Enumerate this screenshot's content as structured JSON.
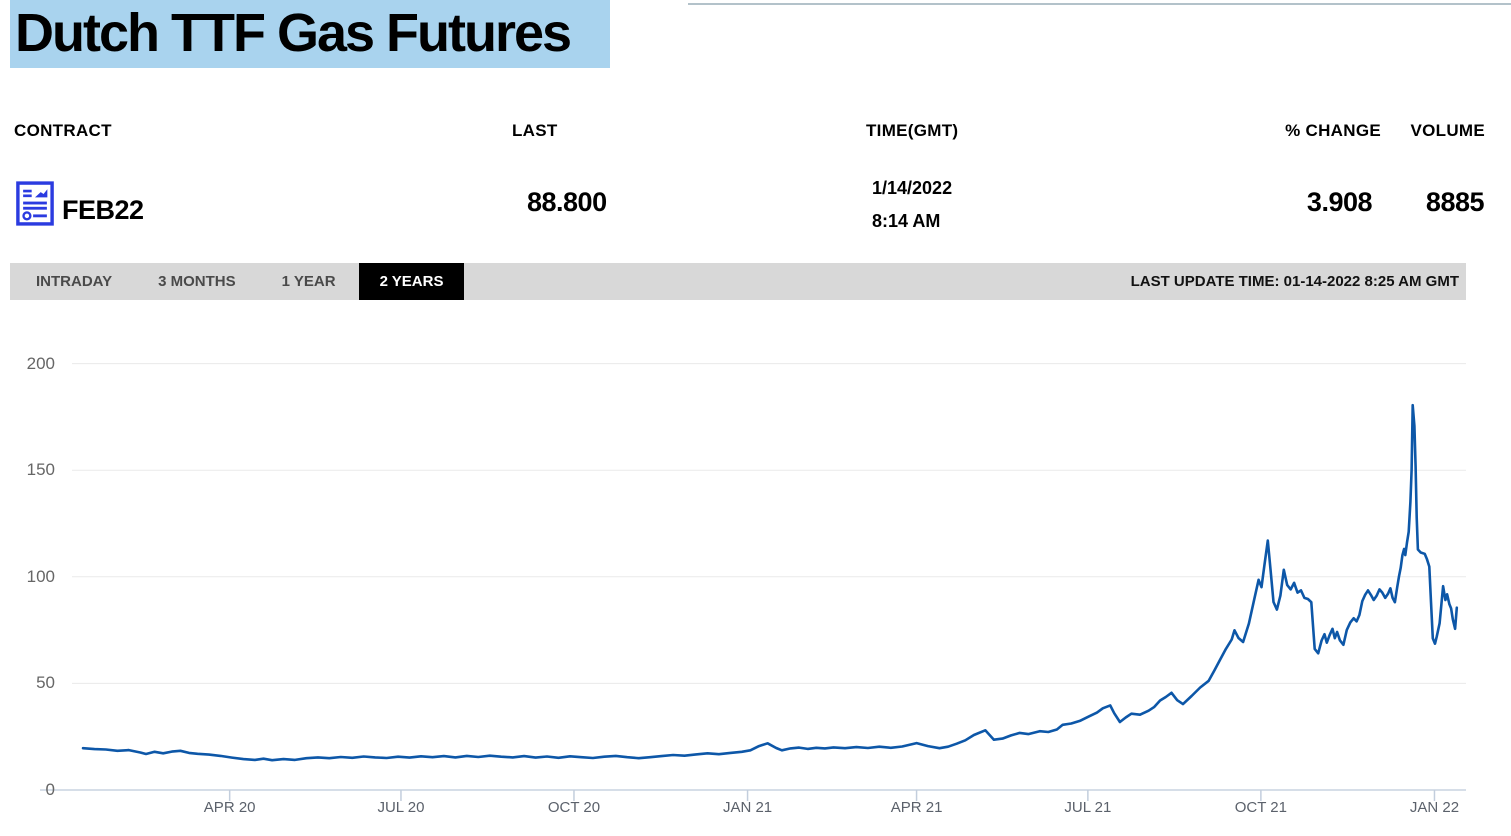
{
  "header": {
    "title": "Dutch TTF Gas Futures"
  },
  "quote_table": {
    "headers": [
      "CONTRACT",
      "LAST",
      "TIME(GMT)",
      "% CHANGE",
      "VOLUME"
    ],
    "row": {
      "contract": "FEB22",
      "last": "88.800",
      "date": "1/14/2022",
      "time": "8:14 AM",
      "pct_change": "3.908",
      "volume": "8885"
    },
    "contract_icon": "contract-document-icon"
  },
  "tabs": {
    "items": [
      {
        "label": "INTRADAY",
        "active": false
      },
      {
        "label": "3 MONTHS",
        "active": false
      },
      {
        "label": "1 YEAR",
        "active": false
      },
      {
        "label": "2 YEARS",
        "active": true
      }
    ],
    "last_update": "LAST UPDATE TIME: 01-14-2022 8:25 AM GMT"
  },
  "colors": {
    "line": "#0d57a8",
    "title_highlight": "#a9d3ee",
    "tab_bar": "#d8d8d8",
    "active_tab": "#000000",
    "gridline": "#eaeaea",
    "baseline": "#c9d3e0",
    "tick": "#c3cedd"
  },
  "chart_data": {
    "type": "line",
    "title": "Dutch TTF Gas Futures price, 2 years",
    "xlabel": "",
    "ylabel": "",
    "ylim": [
      0,
      200
    ],
    "yticks": [
      0,
      50,
      100,
      150,
      200
    ],
    "grid": "horizontal",
    "legend": "none",
    "x_unit": "months since 2020-01-14",
    "x_range": [
      0,
      24
    ],
    "xticks": [
      {
        "label": "APR 20",
        "m": 2.56
      },
      {
        "label": "JUL 20",
        "m": 5.55
      },
      {
        "label": "OCT 20",
        "m": 8.57
      },
      {
        "label": "JAN 21",
        "m": 11.6
      },
      {
        "label": "APR 21",
        "m": 14.55
      },
      {
        "label": "JUL 21",
        "m": 17.54
      },
      {
        "label": "OCT 21",
        "m": 20.56
      },
      {
        "label": "JAN 22",
        "m": 23.59
      }
    ],
    "series": [
      {
        "name": "FEB22",
        "color": "#0d57a8",
        "points": [
          [
            0,
            19.6
          ],
          [
            0.2,
            19.2
          ],
          [
            0.4,
            19.0
          ],
          [
            0.6,
            18.4
          ],
          [
            0.8,
            18.7
          ],
          [
            1.0,
            17.6
          ],
          [
            1.1,
            16.9
          ],
          [
            1.25,
            17.9
          ],
          [
            1.4,
            17.2
          ],
          [
            1.55,
            18.0
          ],
          [
            1.7,
            18.4
          ],
          [
            1.85,
            17.4
          ],
          [
            2.0,
            17.0
          ],
          [
            2.2,
            16.6
          ],
          [
            2.4,
            16.0
          ],
          [
            2.6,
            15.2
          ],
          [
            2.8,
            14.5
          ],
          [
            3.0,
            14.1
          ],
          [
            3.15,
            14.7
          ],
          [
            3.3,
            14.0
          ],
          [
            3.5,
            14.5
          ],
          [
            3.7,
            14.1
          ],
          [
            3.9,
            14.9
          ],
          [
            4.1,
            15.3
          ],
          [
            4.3,
            14.9
          ],
          [
            4.5,
            15.5
          ],
          [
            4.7,
            15.1
          ],
          [
            4.9,
            15.7
          ],
          [
            5.1,
            15.3
          ],
          [
            5.3,
            15.0
          ],
          [
            5.5,
            15.6
          ],
          [
            5.7,
            15.2
          ],
          [
            5.9,
            15.8
          ],
          [
            6.1,
            15.4
          ],
          [
            6.3,
            15.9
          ],
          [
            6.5,
            15.3
          ],
          [
            6.7,
            16.0
          ],
          [
            6.9,
            15.5
          ],
          [
            7.1,
            16.1
          ],
          [
            7.3,
            15.6
          ],
          [
            7.5,
            15.3
          ],
          [
            7.7,
            15.9
          ],
          [
            7.9,
            15.2
          ],
          [
            8.1,
            15.7
          ],
          [
            8.3,
            15.1
          ],
          [
            8.5,
            15.8
          ],
          [
            8.7,
            15.4
          ],
          [
            8.9,
            15.0
          ],
          [
            9.1,
            15.6
          ],
          [
            9.3,
            16.0
          ],
          [
            9.5,
            15.4
          ],
          [
            9.7,
            14.9
          ],
          [
            9.9,
            15.4
          ],
          [
            10.1,
            15.9
          ],
          [
            10.3,
            16.4
          ],
          [
            10.5,
            16.1
          ],
          [
            10.7,
            16.7
          ],
          [
            10.9,
            17.2
          ],
          [
            11.1,
            16.8
          ],
          [
            11.3,
            17.4
          ],
          [
            11.5,
            17.9
          ],
          [
            11.65,
            18.6
          ],
          [
            11.8,
            20.6
          ],
          [
            11.95,
            21.9
          ],
          [
            12.1,
            19.7
          ],
          [
            12.2,
            18.6
          ],
          [
            12.35,
            19.5
          ],
          [
            12.5,
            19.9
          ],
          [
            12.65,
            19.3
          ],
          [
            12.8,
            19.8
          ],
          [
            12.95,
            19.5
          ],
          [
            13.1,
            20.0
          ],
          [
            13.3,
            19.6
          ],
          [
            13.5,
            20.1
          ],
          [
            13.7,
            19.7
          ],
          [
            13.9,
            20.3
          ],
          [
            14.1,
            19.8
          ],
          [
            14.3,
            20.4
          ],
          [
            14.55,
            22.0
          ],
          [
            14.75,
            20.6
          ],
          [
            14.95,
            19.6
          ],
          [
            15.1,
            20.3
          ],
          [
            15.25,
            21.7
          ],
          [
            15.4,
            23.3
          ],
          [
            15.55,
            25.8
          ],
          [
            15.75,
            28.0
          ],
          [
            15.9,
            23.6
          ],
          [
            16.05,
            24.1
          ],
          [
            16.2,
            25.6
          ],
          [
            16.35,
            26.8
          ],
          [
            16.5,
            26.2
          ],
          [
            16.7,
            27.6
          ],
          [
            16.85,
            27.2
          ],
          [
            17.0,
            28.4
          ],
          [
            17.1,
            30.6
          ],
          [
            17.25,
            31.2
          ],
          [
            17.4,
            32.4
          ],
          [
            17.55,
            34.4
          ],
          [
            17.7,
            36.3
          ],
          [
            17.8,
            38.3
          ],
          [
            17.93,
            39.7
          ],
          [
            18.0,
            36.0
          ],
          [
            18.1,
            31.9
          ],
          [
            18.2,
            34.0
          ],
          [
            18.3,
            35.8
          ],
          [
            18.45,
            35.3
          ],
          [
            18.6,
            37.2
          ],
          [
            18.7,
            39.0
          ],
          [
            18.8,
            42.0
          ],
          [
            18.9,
            43.6
          ],
          [
            19.0,
            45.6
          ],
          [
            19.1,
            42.1
          ],
          [
            19.2,
            40.3
          ],
          [
            19.35,
            44.1
          ],
          [
            19.5,
            48.1
          ],
          [
            19.65,
            51.2
          ],
          [
            19.75,
            56.2
          ],
          [
            19.85,
            61.2
          ],
          [
            19.95,
            66.2
          ],
          [
            20.05,
            70.6
          ],
          [
            20.1,
            74.9
          ],
          [
            20.17,
            71.3
          ],
          [
            20.25,
            69.4
          ],
          [
            20.35,
            78.1
          ],
          [
            20.45,
            90.2
          ],
          [
            20.52,
            98.6
          ],
          [
            20.57,
            95.1
          ],
          [
            20.62,
            105.0
          ],
          [
            20.68,
            117.0
          ],
          [
            20.73,
            103.0
          ],
          [
            20.78,
            88.2
          ],
          [
            20.84,
            84.6
          ],
          [
            20.9,
            91.2
          ],
          [
            20.96,
            103.3
          ],
          [
            21.02,
            96.1
          ],
          [
            21.08,
            94.1
          ],
          [
            21.14,
            97.2
          ],
          [
            21.2,
            92.6
          ],
          [
            21.26,
            93.6
          ],
          [
            21.32,
            90.1
          ],
          [
            21.38,
            89.6
          ],
          [
            21.44,
            88.1
          ],
          [
            21.5,
            66.2
          ],
          [
            21.56,
            64.1
          ],
          [
            21.62,
            70.1
          ],
          [
            21.67,
            73.1
          ],
          [
            21.71,
            69.1
          ],
          [
            21.76,
            72.6
          ],
          [
            21.81,
            75.6
          ],
          [
            21.85,
            71.2
          ],
          [
            21.89,
            74.1
          ],
          [
            21.94,
            70.2
          ],
          [
            22.0,
            68.1
          ],
          [
            22.06,
            75.1
          ],
          [
            22.12,
            78.6
          ],
          [
            22.18,
            80.6
          ],
          [
            22.23,
            79.1
          ],
          [
            22.28,
            82.1
          ],
          [
            22.33,
            88.6
          ],
          [
            22.38,
            91.6
          ],
          [
            22.43,
            93.6
          ],
          [
            22.48,
            91.5
          ],
          [
            22.53,
            89.1
          ],
          [
            22.58,
            91.1
          ],
          [
            22.63,
            94.1
          ],
          [
            22.68,
            92.6
          ],
          [
            22.73,
            90.1
          ],
          [
            22.78,
            92.1
          ],
          [
            22.82,
            94.6
          ],
          [
            22.86,
            90.1
          ],
          [
            22.9,
            88.1
          ],
          [
            22.94,
            95.1
          ],
          [
            22.97,
            100.2
          ],
          [
            23.0,
            104.2
          ],
          [
            23.03,
            110.1
          ],
          [
            23.06,
            113.1
          ],
          [
            23.08,
            110.2
          ],
          [
            23.11,
            116.1
          ],
          [
            23.14,
            121.1
          ],
          [
            23.17,
            135.1
          ],
          [
            23.19,
            150.0
          ],
          [
            23.21,
            180.5
          ],
          [
            23.24,
            170.8
          ],
          [
            23.26,
            151.8
          ],
          [
            23.28,
            127.8
          ],
          [
            23.3,
            112.8
          ],
          [
            23.35,
            111.4
          ],
          [
            23.42,
            110.8
          ],
          [
            23.46,
            108.2
          ],
          [
            23.5,
            104.8
          ],
          [
            23.53,
            88.2
          ],
          [
            23.56,
            71.1
          ],
          [
            23.6,
            68.6
          ],
          [
            23.63,
            72.1
          ],
          [
            23.68,
            78.2
          ],
          [
            23.74,
            95.6
          ],
          [
            23.78,
            89.1
          ],
          [
            23.81,
            91.8
          ],
          [
            23.85,
            87.1
          ],
          [
            23.88,
            85.2
          ],
          [
            23.91,
            80.1
          ],
          [
            23.95,
            75.6
          ],
          [
            23.98,
            85.5
          ]
        ]
      }
    ]
  }
}
